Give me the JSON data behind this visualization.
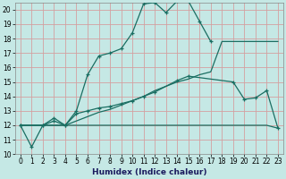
{
  "xlabel": "Humidex (Indice chaleur)",
  "bg_color": "#c5e8e5",
  "grid_color": "#d4a0a0",
  "line_color": "#1a6e62",
  "line1": {
    "x": [
      0,
      1,
      2,
      3,
      4,
      5,
      6,
      7,
      8,
      9,
      10,
      11,
      12,
      13,
      14,
      15,
      16,
      17
    ],
    "y": [
      12,
      10.5,
      12,
      12.3,
      12,
      13.0,
      15.5,
      16.8,
      17.0,
      17.3,
      18.4,
      20.4,
      20.5,
      19.8,
      20.6,
      20.6,
      19.2,
      17.8
    ],
    "marker": true
  },
  "line2": {
    "x": [
      0,
      2,
      3,
      4,
      5,
      6,
      7,
      8,
      9,
      10,
      11,
      12,
      14,
      15,
      19,
      20,
      21,
      22,
      23
    ],
    "y": [
      12,
      12,
      12.5,
      12,
      12.8,
      13.0,
      13.2,
      13.3,
      13.5,
      13.7,
      14.0,
      14.3,
      15.1,
      15.4,
      15.0,
      13.8,
      13.9,
      14.4,
      11.8
    ],
    "marker": true
  },
  "line3": {
    "x": [
      0,
      4,
      5,
      6,
      7,
      8,
      9,
      10,
      11,
      12,
      13,
      14,
      15,
      16,
      17,
      18,
      19,
      20,
      21,
      22,
      23
    ],
    "y": [
      12,
      12,
      12.3,
      12.6,
      12.9,
      13.1,
      13.4,
      13.7,
      14.0,
      14.4,
      14.7,
      15.0,
      15.2,
      15.5,
      15.7,
      17.8,
      17.8,
      17.8,
      17.8,
      17.8,
      17.8
    ],
    "marker": false
  },
  "line4": {
    "x": [
      0,
      4,
      5,
      6,
      10,
      14,
      15,
      16,
      17,
      18,
      19,
      20,
      21,
      22,
      23
    ],
    "y": [
      12,
      12,
      12,
      12,
      12,
      12,
      12,
      12,
      12,
      12,
      12,
      12,
      12,
      12,
      11.8
    ],
    "marker": false
  },
  "xlim": [
    -0.5,
    23.5
  ],
  "ylim": [
    10,
    20.5
  ],
  "xticks": [
    0,
    1,
    2,
    3,
    4,
    5,
    6,
    7,
    8,
    9,
    10,
    11,
    12,
    13,
    14,
    15,
    16,
    17,
    18,
    19,
    20,
    21,
    22,
    23
  ],
  "yticks": [
    10,
    11,
    12,
    13,
    14,
    15,
    16,
    17,
    18,
    19,
    20
  ]
}
